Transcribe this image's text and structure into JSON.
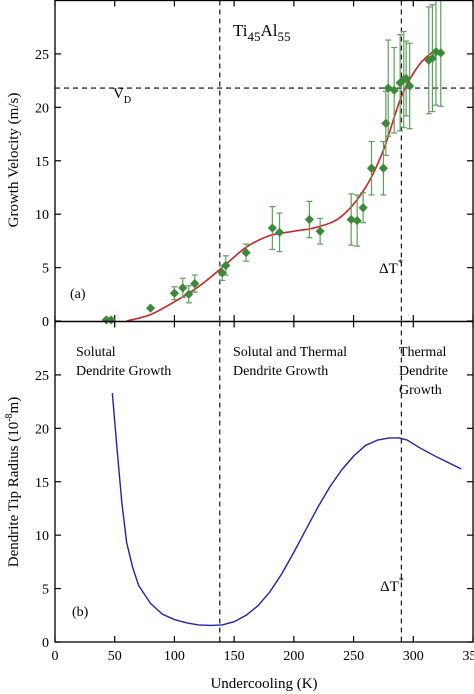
{
  "chart_data": [
    {
      "panel": "top",
      "type": "scatter",
      "title": "Ti45Al55",
      "title_parts": {
        "a": "Ti",
        "a_sub": "45",
        "b": "Al",
        "b_sub": "55"
      },
      "panel_label": "(a)",
      "ylabel": "Growth Velocity (m/s)",
      "xlim": [
        0,
        350
      ],
      "ylim": [
        0,
        30
      ],
      "yticks": [
        "0",
        "5",
        "10",
        "15",
        "20",
        "25"
      ],
      "ytick_values": [
        0,
        5,
        10,
        15,
        20,
        25
      ],
      "hline": {
        "y": 21.8,
        "label": "V",
        "label_sub": "D"
      },
      "vlines": [
        {
          "x": 138
        },
        {
          "x": 290,
          "label": "ΔT",
          "label_sup": "*"
        }
      ],
      "marker_color": "#3a8a3a",
      "errorbar_color": "#5e9e5e",
      "fit_color": "#cc2222",
      "points": [
        {
          "x": 43,
          "y": 0.1,
          "err": 0
        },
        {
          "x": 47,
          "y": 0.1,
          "err": 0
        },
        {
          "x": 80,
          "y": 1.2,
          "err": 0
        },
        {
          "x": 100,
          "y": 2.6,
          "err": 0.6
        },
        {
          "x": 107,
          "y": 3.1,
          "err": 0.9
        },
        {
          "x": 112,
          "y": 2.5,
          "err": 0.8
        },
        {
          "x": 117,
          "y": 3.5,
          "err": 0.8
        },
        {
          "x": 140,
          "y": 4.5,
          "err": 0.7
        },
        {
          "x": 143,
          "y": 5.2,
          "err": 0.9
        },
        {
          "x": 160,
          "y": 6.4,
          "err": 0.8
        },
        {
          "x": 182,
          "y": 8.7,
          "err": 2.0
        },
        {
          "x": 188,
          "y": 8.3,
          "err": 1.8
        },
        {
          "x": 213,
          "y": 9.5,
          "err": 1.7
        },
        {
          "x": 222,
          "y": 8.4,
          "err": 1.2
        },
        {
          "x": 248,
          "y": 9.5,
          "err": 2.4
        },
        {
          "x": 253,
          "y": 9.4,
          "err": 2.4
        },
        {
          "x": 258,
          "y": 10.6,
          "err": 1.4
        },
        {
          "x": 265,
          "y": 14.3,
          "err": 2.5
        },
        {
          "x": 275,
          "y": 14.3,
          "err": 2.5
        },
        {
          "x": 277,
          "y": 18.5,
          "err": 3.0
        },
        {
          "x": 279,
          "y": 21.8,
          "err": 4.5
        },
        {
          "x": 284,
          "y": 21.6,
          "err": 4.0
        },
        {
          "x": 289,
          "y": 22.3,
          "err": 4.5
        },
        {
          "x": 292,
          "y": 22.6,
          "err": 4.5
        },
        {
          "x": 294,
          "y": 22.7,
          "err": 3.5
        },
        {
          "x": 297,
          "y": 22.0,
          "err": 4.0
        },
        {
          "x": 313,
          "y": 24.4,
          "err": 5.0
        },
        {
          "x": 316,
          "y": 24.6,
          "err": 5.0
        },
        {
          "x": 319,
          "y": 25.2,
          "err": 5.0
        },
        {
          "x": 323,
          "y": 25.1,
          "err": 5.0
        }
      ],
      "fit_curve": {
        "x": [
          60,
          80,
          100,
          120,
          140,
          160,
          180,
          200,
          220,
          240,
          260,
          275,
          290,
          305,
          320
        ],
        "y": [
          0.0,
          0.6,
          1.8,
          3.2,
          5.0,
          6.9,
          8.0,
          8.4,
          8.8,
          9.8,
          12.5,
          16.0,
          21.0,
          24.0,
          25.5
        ]
      }
    },
    {
      "panel": "bottom",
      "type": "line",
      "panel_label": "(b)",
      "xlabel": "Undercooling (K)",
      "ylabel": "Dendrite Tip Radius (10",
      "ylabel_sup": "-8",
      "ylabel_tail": "m)",
      "xlim": [
        0,
        350
      ],
      "ylim": [
        0,
        30
      ],
      "xticks": [
        "0",
        "50",
        "100",
        "150",
        "200",
        "250",
        "300",
        "350"
      ],
      "xtick_values": [
        0,
        50,
        100,
        150,
        200,
        250,
        300,
        350
      ],
      "yticks": [
        "0",
        "5",
        "10",
        "15",
        "20",
        "25"
      ],
      "ytick_values": [
        0,
        5,
        10,
        15,
        20,
        25
      ],
      "vlines": [
        {
          "x": 138
        },
        {
          "x": 290,
          "label": "ΔT",
          "label_sup": "*"
        }
      ],
      "region_labels": [
        {
          "lines": [
            "Solutal",
            "Dendrite Growth"
          ]
        },
        {
          "lines": [
            "Solutal and Thermal",
            "Dendrite Growth"
          ]
        },
        {
          "lines": [
            "Thermal",
            "Dendrite",
            "Growth"
          ]
        }
      ],
      "line_color": "#2222aa",
      "series": [
        {
          "x": [
            48,
            52,
            56,
            60,
            65,
            70,
            80,
            90,
            100,
            110,
            120,
            130,
            140,
            150,
            160,
            170,
            180,
            190,
            200,
            210,
            220,
            230,
            240,
            250,
            260,
            270,
            280,
            288,
            295,
            305,
            320,
            340
          ],
          "y": [
            23.3,
            18.0,
            13.0,
            9.3,
            7.0,
            5.3,
            3.6,
            2.6,
            2.1,
            1.8,
            1.6,
            1.55,
            1.6,
            1.9,
            2.5,
            3.4,
            4.7,
            6.4,
            8.4,
            10.5,
            12.6,
            14.5,
            16.1,
            17.4,
            18.4,
            18.9,
            19.1,
            19.1,
            18.9,
            18.2,
            17.3,
            16.2
          ]
        }
      ]
    }
  ]
}
